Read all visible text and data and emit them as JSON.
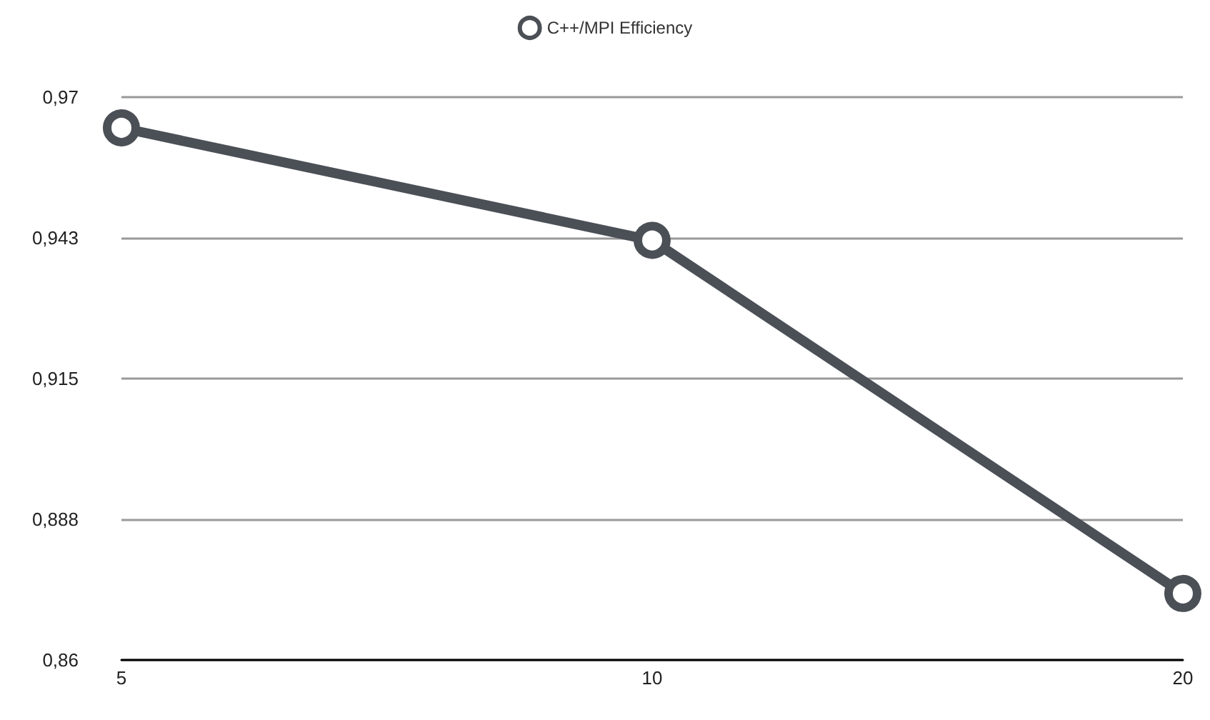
{
  "chart_data": {
    "type": "line",
    "categories": [
      "5",
      "10",
      "20"
    ],
    "series": [
      {
        "name": "C++/MPI Efficiency",
        "color": "#4b4f56",
        "values": [
          0.964,
          0.942,
          0.873
        ]
      }
    ],
    "ylim": [
      0.86,
      0.97
    ],
    "yticks": [
      {
        "value": 0.86,
        "label": "0,86"
      },
      {
        "value": 0.8875,
        "label": "0,888"
      },
      {
        "value": 0.915,
        "label": "0,915"
      },
      {
        "value": 0.9425,
        "label": "0,943"
      },
      {
        "value": 0.97,
        "label": "0,97"
      }
    ],
    "grid": "y",
    "legend": "top",
    "marker": "circle",
    "line_style": "solid"
  }
}
